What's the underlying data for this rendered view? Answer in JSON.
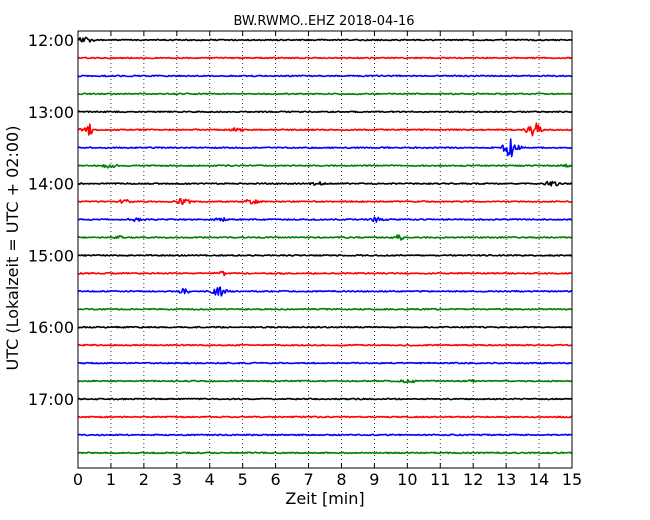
{
  "chart_data": {
    "type": "line",
    "title": "BW.RWMO..EHZ 2018-04-16",
    "xlabel": "Zeit  [min]",
    "ylabel": "UTC (Lokalzeit = UTC + 02:00)",
    "xlim": [
      0,
      15
    ],
    "x_ticks": [
      0,
      1,
      2,
      3,
      4,
      5,
      6,
      7,
      8,
      9,
      10,
      11,
      12,
      13,
      14,
      15
    ],
    "y_tick_labels": [
      "12:00",
      "13:00",
      "14:00",
      "15:00",
      "16:00",
      "17:00"
    ],
    "grid": "vertical dotted",
    "trace_interval_minutes": 15,
    "trace_colors": [
      "#000000",
      "#ff0000",
      "#0000ff",
      "#008000"
    ],
    "traces": [
      {
        "start": "12:00",
        "color": "#000000",
        "events": [
          {
            "t": 0.2,
            "amp": 3
          }
        ]
      },
      {
        "start": "12:15",
        "color": "#ff0000",
        "events": []
      },
      {
        "start": "12:30",
        "color": "#0000ff",
        "events": []
      },
      {
        "start": "12:45",
        "color": "#008000",
        "events": []
      },
      {
        "start": "13:00",
        "color": "#000000",
        "events": []
      },
      {
        "start": "13:15",
        "color": "#ff0000",
        "events": [
          {
            "t": 0.35,
            "amp": 6
          },
          {
            "t": 4.8,
            "amp": 2
          },
          {
            "t": 13.85,
            "amp": 8
          }
        ]
      },
      {
        "start": "13:30",
        "color": "#0000ff",
        "events": [
          {
            "t": 13.15,
            "amp": 11
          }
        ]
      },
      {
        "start": "13:45",
        "color": "#008000",
        "events": [
          {
            "t": 1.0,
            "amp": 3
          },
          {
            "t": 14.9,
            "amp": 2
          }
        ]
      },
      {
        "start": "14:00",
        "color": "#000000",
        "events": [
          {
            "t": 7.3,
            "amp": 2
          },
          {
            "t": 14.4,
            "amp": 3
          }
        ]
      },
      {
        "start": "14:15",
        "color": "#ff0000",
        "events": [
          {
            "t": 1.4,
            "amp": 3
          },
          {
            "t": 3.2,
            "amp": 4
          },
          {
            "t": 5.3,
            "amp": 3
          }
        ]
      },
      {
        "start": "14:30",
        "color": "#0000ff",
        "events": [
          {
            "t": 1.8,
            "amp": 2
          },
          {
            "t": 4.4,
            "amp": 2
          },
          {
            "t": 9.1,
            "amp": 3
          }
        ]
      },
      {
        "start": "14:45",
        "color": "#008000",
        "events": [
          {
            "t": 1.2,
            "amp": 2
          },
          {
            "t": 9.8,
            "amp": 3
          }
        ]
      },
      {
        "start": "15:00",
        "color": "#000000",
        "events": []
      },
      {
        "start": "15:15",
        "color": "#ff0000",
        "events": [
          {
            "t": 4.4,
            "amp": 2
          }
        ]
      },
      {
        "start": "15:30",
        "color": "#0000ff",
        "events": [
          {
            "t": 3.2,
            "amp": 3
          },
          {
            "t": 4.3,
            "amp": 5
          }
        ]
      },
      {
        "start": "15:45",
        "color": "#008000",
        "events": []
      },
      {
        "start": "16:00",
        "color": "#000000",
        "events": []
      },
      {
        "start": "16:15",
        "color": "#ff0000",
        "events": []
      },
      {
        "start": "16:30",
        "color": "#0000ff",
        "events": []
      },
      {
        "start": "16:45",
        "color": "#008000",
        "events": [
          {
            "t": 10.0,
            "amp": 2
          },
          {
            "t": 12.0,
            "amp": 1
          }
        ]
      },
      {
        "start": "17:00",
        "color": "#000000",
        "events": []
      },
      {
        "start": "17:15",
        "color": "#ff0000",
        "events": []
      },
      {
        "start": "17:30",
        "color": "#0000ff",
        "events": []
      },
      {
        "start": "17:45",
        "color": "#008000",
        "events": []
      }
    ]
  }
}
